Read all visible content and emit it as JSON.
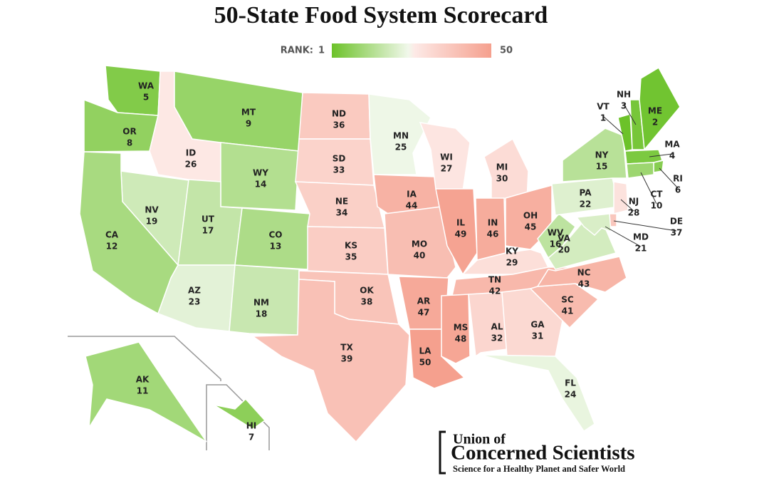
{
  "title": "50-State Food System Scorecard",
  "legend": {
    "label": "RANK:",
    "min": 1,
    "max": 50,
    "colors": [
      "#6cc229",
      "#f1f8eb",
      "#fde9e6",
      "#f5a08e"
    ]
  },
  "states": [
    {
      "abbr": "WA",
      "rank": 5
    },
    {
      "abbr": "OR",
      "rank": 8
    },
    {
      "abbr": "NV",
      "rank": 19
    },
    {
      "abbr": "CA",
      "rank": 12
    },
    {
      "abbr": "ID",
      "rank": 26
    },
    {
      "abbr": "MT",
      "rank": 9
    },
    {
      "abbr": "WY",
      "rank": 14
    },
    {
      "abbr": "UT",
      "rank": 17
    },
    {
      "abbr": "CO",
      "rank": 13
    },
    {
      "abbr": "AZ",
      "rank": 23
    },
    {
      "abbr": "NM",
      "rank": 18
    },
    {
      "abbr": "ND",
      "rank": 36
    },
    {
      "abbr": "SD",
      "rank": 33
    },
    {
      "abbr": "NE",
      "rank": 34
    },
    {
      "abbr": "KS",
      "rank": 35
    },
    {
      "abbr": "OK",
      "rank": 38
    },
    {
      "abbr": "TX",
      "rank": 39
    },
    {
      "abbr": "MN",
      "rank": 25
    },
    {
      "abbr": "IA",
      "rank": 44
    },
    {
      "abbr": "MO",
      "rank": 40
    },
    {
      "abbr": "AR",
      "rank": 47
    },
    {
      "abbr": "LA",
      "rank": 50
    },
    {
      "abbr": "WI",
      "rank": 27
    },
    {
      "abbr": "IL",
      "rank": 49
    },
    {
      "abbr": "MI",
      "rank": 30
    },
    {
      "abbr": "IN",
      "rank": 46
    },
    {
      "abbr": "OH",
      "rank": 45
    },
    {
      "abbr": "KY",
      "rank": 29
    },
    {
      "abbr": "TN",
      "rank": 42
    },
    {
      "abbr": "MS",
      "rank": 48
    },
    {
      "abbr": "AL",
      "rank": 32
    },
    {
      "abbr": "GA",
      "rank": 31
    },
    {
      "abbr": "FL",
      "rank": 24
    },
    {
      "abbr": "SC",
      "rank": 41
    },
    {
      "abbr": "NC",
      "rank": 43
    },
    {
      "abbr": "VA",
      "rank": 20
    },
    {
      "abbr": "WV",
      "rank": 16
    },
    {
      "abbr": "PA",
      "rank": 22
    },
    {
      "abbr": "NY",
      "rank": 15
    },
    {
      "abbr": "VT",
      "rank": 1
    },
    {
      "abbr": "NH",
      "rank": 3
    },
    {
      "abbr": "ME",
      "rank": 2
    },
    {
      "abbr": "MA",
      "rank": 4
    },
    {
      "abbr": "RI",
      "rank": 6
    },
    {
      "abbr": "CT",
      "rank": 10
    },
    {
      "abbr": "NJ",
      "rank": 28
    },
    {
      "abbr": "DE",
      "rank": 37
    },
    {
      "abbr": "MD",
      "rank": 21
    },
    {
      "abbr": "AK",
      "rank": 11
    },
    {
      "abbr": "HI",
      "rank": 7
    }
  ],
  "logo": {
    "line1": "Union of",
    "line2": "Concerned Scientists",
    "tagline": "Science for a Healthy Planet and Safer World"
  }
}
